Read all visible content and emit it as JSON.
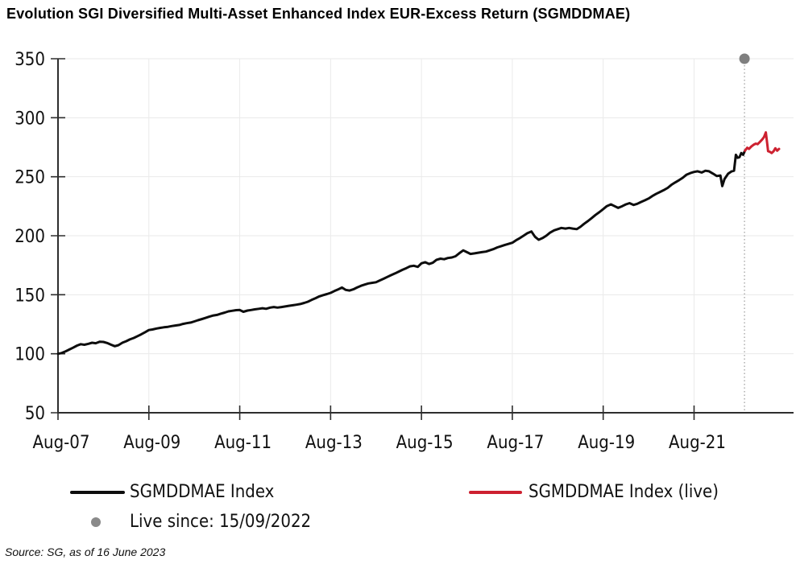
{
  "title": "Evolution SGI Diversified Multi-Asset Enhanced Index EUR-Excess Return (SGMDDMAE)",
  "source_note": "Source: SG, as of 16 June 2023",
  "legend": {
    "series1_label": "SGMDDMAE Index",
    "series2_label": "SGMDDMAE Index (live)",
    "marker_label": "Live since: 15/09/2022"
  },
  "colors": {
    "series_main": "#0d0d0d",
    "series_live": "#cd2130",
    "marker_gray": "#7f7f7f",
    "axis": "#2e2e2e",
    "grid": "#eaeaea"
  },
  "chart_data": {
    "type": "line",
    "title": "Evolution SGI Diversified Multi-Asset Enhanced Index EUR-Excess Return (SGMDDMAE)",
    "x_unit": "years since Aug-2007",
    "xlim": [
      0,
      16.19
    ],
    "ylim": [
      50,
      350
    ],
    "yticks": [
      50,
      100,
      150,
      200,
      250,
      300,
      350
    ],
    "xticks": [
      {
        "t": 0,
        "label": "Aug-07"
      },
      {
        "t": 2,
        "label": "Aug-09"
      },
      {
        "t": 4,
        "label": "Aug-11"
      },
      {
        "t": 6,
        "label": "Aug-13"
      },
      {
        "t": 8,
        "label": "Aug-15"
      },
      {
        "t": 10,
        "label": "Aug-17"
      },
      {
        "t": 12,
        "label": "Aug-19"
      },
      {
        "t": 14,
        "label": "Aug-21"
      }
    ],
    "grid": true,
    "legend_position": "bottom",
    "marker": {
      "label": "Live since: 15/09/2022",
      "t": 15.11,
      "value": 350,
      "color": "#7f7f7f"
    },
    "series": [
      {
        "name": "SGMDDMAE Index",
        "color": "#0d0d0d",
        "points": [
          [
            0.0,
            100.0
          ],
          [
            0.08,
            100.6
          ],
          [
            0.17,
            102.1
          ],
          [
            0.25,
            103.6
          ],
          [
            0.33,
            105.1
          ],
          [
            0.42,
            106.9
          ],
          [
            0.5,
            108.1
          ],
          [
            0.58,
            107.6
          ],
          [
            0.67,
            108.4
          ],
          [
            0.75,
            109.3
          ],
          [
            0.83,
            108.9
          ],
          [
            0.92,
            110.2
          ],
          [
            1.0,
            110.0
          ],
          [
            1.08,
            109.1
          ],
          [
            1.17,
            107.6
          ],
          [
            1.25,
            106.4
          ],
          [
            1.33,
            107.3
          ],
          [
            1.42,
            109.4
          ],
          [
            1.5,
            110.6
          ],
          [
            1.58,
            112.1
          ],
          [
            1.67,
            113.4
          ],
          [
            1.75,
            114.9
          ],
          [
            1.83,
            116.4
          ],
          [
            1.92,
            118.3
          ],
          [
            2.0,
            120.1
          ],
          [
            2.08,
            120.6
          ],
          [
            2.17,
            121.4
          ],
          [
            2.25,
            121.9
          ],
          [
            2.33,
            122.4
          ],
          [
            2.42,
            122.8
          ],
          [
            2.5,
            123.4
          ],
          [
            2.58,
            123.9
          ],
          [
            2.67,
            124.4
          ],
          [
            2.75,
            125.3
          ],
          [
            2.83,
            125.9
          ],
          [
            2.92,
            126.4
          ],
          [
            3.0,
            127.4
          ],
          [
            3.08,
            128.4
          ],
          [
            3.17,
            129.4
          ],
          [
            3.25,
            130.4
          ],
          [
            3.33,
            131.4
          ],
          [
            3.42,
            132.4
          ],
          [
            3.5,
            132.9
          ],
          [
            3.58,
            133.9
          ],
          [
            3.67,
            134.9
          ],
          [
            3.75,
            135.9
          ],
          [
            3.83,
            136.4
          ],
          [
            3.92,
            136.9
          ],
          [
            4.0,
            137.1
          ],
          [
            4.08,
            135.6
          ],
          [
            4.17,
            136.6
          ],
          [
            4.25,
            137.1
          ],
          [
            4.33,
            137.6
          ],
          [
            4.42,
            138.1
          ],
          [
            4.5,
            138.6
          ],
          [
            4.58,
            138.1
          ],
          [
            4.67,
            139.1
          ],
          [
            4.75,
            139.6
          ],
          [
            4.83,
            139.1
          ],
          [
            4.92,
            139.6
          ],
          [
            5.0,
            140.1
          ],
          [
            5.08,
            140.6
          ],
          [
            5.17,
            141.1
          ],
          [
            5.25,
            141.6
          ],
          [
            5.33,
            142.1
          ],
          [
            5.42,
            143.1
          ],
          [
            5.5,
            144.1
          ],
          [
            5.58,
            145.6
          ],
          [
            5.67,
            147.1
          ],
          [
            5.75,
            148.6
          ],
          [
            5.83,
            149.6
          ],
          [
            5.92,
            150.6
          ],
          [
            6.0,
            151.6
          ],
          [
            6.08,
            153.1
          ],
          [
            6.17,
            154.6
          ],
          [
            6.25,
            156.1
          ],
          [
            6.33,
            154.1
          ],
          [
            6.42,
            153.6
          ],
          [
            6.5,
            154.6
          ],
          [
            6.58,
            156.1
          ],
          [
            6.67,
            157.6
          ],
          [
            6.75,
            158.6
          ],
          [
            6.83,
            159.6
          ],
          [
            6.92,
            160.1
          ],
          [
            7.0,
            160.6
          ],
          [
            7.08,
            162.1
          ],
          [
            7.17,
            163.6
          ],
          [
            7.25,
            165.1
          ],
          [
            7.33,
            166.6
          ],
          [
            7.42,
            168.1
          ],
          [
            7.5,
            169.6
          ],
          [
            7.58,
            171.1
          ],
          [
            7.67,
            172.6
          ],
          [
            7.75,
            174.1
          ],
          [
            7.83,
            174.6
          ],
          [
            7.92,
            173.6
          ],
          [
            8.0,
            176.6
          ],
          [
            8.08,
            177.6
          ],
          [
            8.17,
            176.1
          ],
          [
            8.25,
            177.1
          ],
          [
            8.33,
            179.6
          ],
          [
            8.42,
            180.6
          ],
          [
            8.5,
            180.1
          ],
          [
            8.58,
            181.1
          ],
          [
            8.67,
            181.6
          ],
          [
            8.75,
            182.6
          ],
          [
            8.83,
            185.1
          ],
          [
            8.92,
            187.6
          ],
          [
            9.0,
            186.1
          ],
          [
            9.08,
            184.6
          ],
          [
            9.17,
            185.1
          ],
          [
            9.25,
            185.6
          ],
          [
            9.33,
            186.1
          ],
          [
            9.42,
            186.6
          ],
          [
            9.5,
            187.6
          ],
          [
            9.58,
            188.6
          ],
          [
            9.67,
            190.1
          ],
          [
            9.75,
            191.1
          ],
          [
            9.83,
            192.1
          ],
          [
            9.92,
            193.1
          ],
          [
            10.0,
            194.1
          ],
          [
            10.08,
            196.1
          ],
          [
            10.17,
            198.1
          ],
          [
            10.25,
            200.1
          ],
          [
            10.33,
            202.1
          ],
          [
            10.42,
            203.6
          ],
          [
            10.5,
            199.1
          ],
          [
            10.58,
            196.6
          ],
          [
            10.67,
            198.1
          ],
          [
            10.75,
            200.1
          ],
          [
            10.83,
            202.6
          ],
          [
            10.92,
            204.6
          ],
          [
            11.0,
            205.6
          ],
          [
            11.08,
            206.6
          ],
          [
            11.17,
            206.1
          ],
          [
            11.25,
            206.6
          ],
          [
            11.33,
            206.1
          ],
          [
            11.42,
            205.6
          ],
          [
            11.5,
            207.6
          ],
          [
            11.58,
            210.1
          ],
          [
            11.67,
            212.6
          ],
          [
            11.75,
            215.1
          ],
          [
            11.83,
            217.6
          ],
          [
            11.92,
            220.1
          ],
          [
            12.0,
            222.6
          ],
          [
            12.08,
            225.1
          ],
          [
            12.17,
            226.6
          ],
          [
            12.25,
            225.1
          ],
          [
            12.33,
            223.6
          ],
          [
            12.42,
            225.1
          ],
          [
            12.5,
            226.6
          ],
          [
            12.58,
            227.6
          ],
          [
            12.67,
            226.1
          ],
          [
            12.75,
            227.1
          ],
          [
            12.83,
            228.6
          ],
          [
            12.92,
            230.1
          ],
          [
            13.0,
            231.6
          ],
          [
            13.08,
            233.6
          ],
          [
            13.17,
            235.6
          ],
          [
            13.25,
            237.1
          ],
          [
            13.33,
            238.6
          ],
          [
            13.42,
            240.6
          ],
          [
            13.5,
            243.1
          ],
          [
            13.58,
            245.1
          ],
          [
            13.67,
            247.1
          ],
          [
            13.75,
            249.1
          ],
          [
            13.83,
            251.6
          ],
          [
            13.92,
            253.1
          ],
          [
            14.0,
            254.1
          ],
          [
            14.08,
            254.6
          ],
          [
            14.17,
            253.6
          ],
          [
            14.25,
            255.1
          ],
          [
            14.33,
            254.6
          ],
          [
            14.42,
            252.6
          ],
          [
            14.5,
            250.6
          ],
          [
            14.58,
            251.1
          ],
          [
            14.62,
            242.1
          ],
          [
            14.67,
            248.1
          ],
          [
            14.75,
            252.6
          ],
          [
            14.83,
            254.6
          ],
          [
            14.88,
            255.1
          ],
          [
            14.92,
            268.6
          ],
          [
            14.96,
            266.1
          ],
          [
            15.0,
            266.6
          ],
          [
            15.04,
            270.1
          ],
          [
            15.08,
            268.6
          ],
          [
            15.12,
            272.1
          ]
        ]
      },
      {
        "name": "SGMDDMAE Index (live)",
        "color": "#cd2130",
        "points": [
          [
            15.12,
            272.1
          ],
          [
            15.17,
            274.6
          ],
          [
            15.21,
            273.6
          ],
          [
            15.26,
            275.6
          ],
          [
            15.31,
            277.1
          ],
          [
            15.36,
            278.1
          ],
          [
            15.4,
            277.6
          ],
          [
            15.45,
            279.6
          ],
          [
            15.5,
            281.6
          ],
          [
            15.54,
            283.6
          ],
          [
            15.58,
            287.6
          ],
          [
            15.61,
            278.1
          ],
          [
            15.63,
            271.6
          ],
          [
            15.67,
            271.1
          ],
          [
            15.71,
            270.1
          ],
          [
            15.75,
            271.6
          ],
          [
            15.79,
            274.1
          ],
          [
            15.83,
            272.1
          ],
          [
            15.87,
            273.6
          ]
        ]
      }
    ]
  }
}
